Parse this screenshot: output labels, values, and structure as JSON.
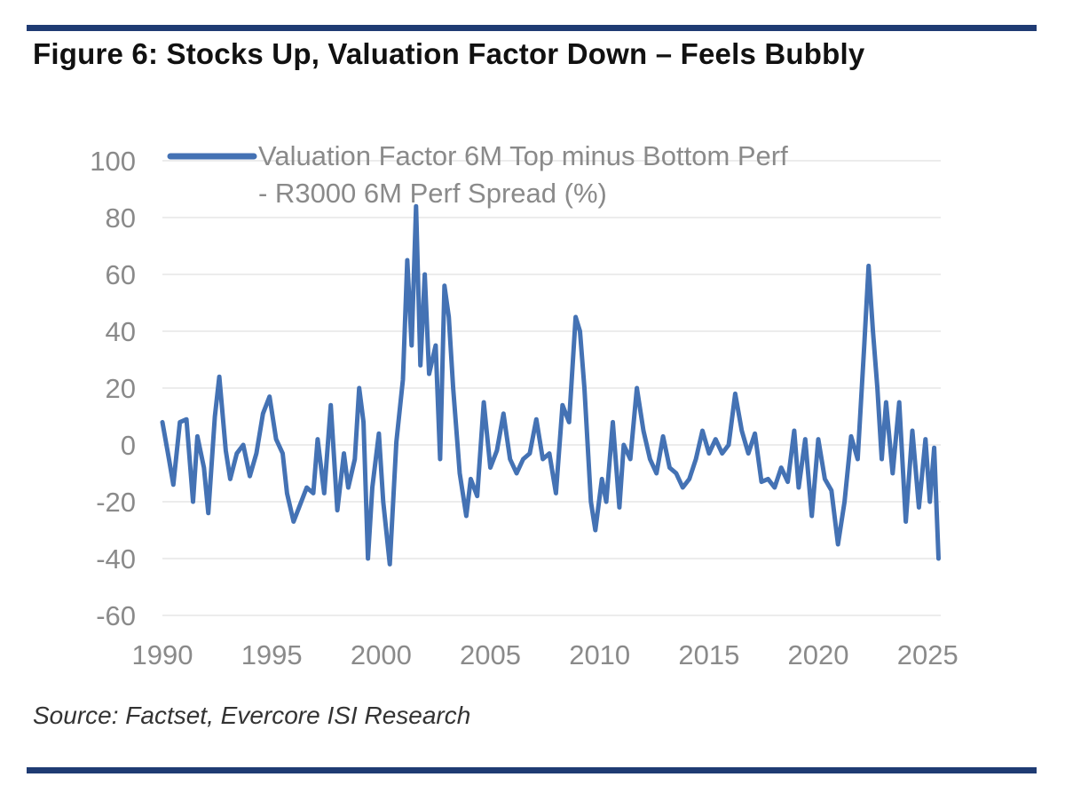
{
  "title": "Figure 6: Stocks Up, Valuation Factor Down – Feels Bubbly",
  "source": "Source: Factset, Evercore ISI Research",
  "colors": {
    "line": "#4472b4",
    "rule": "#1f3b73",
    "grid": "#e6e6e6",
    "tick": "#8a8a8a"
  },
  "chart_data": {
    "type": "line",
    "title": "Figure 6: Stocks Up, Valuation Factor Down – Feels Bubbly",
    "xlabel": "",
    "ylabel": "",
    "xlim": [
      1990,
      2025.6
    ],
    "ylim": [
      -60,
      100
    ],
    "x_ticks": [
      "1990",
      "1995",
      "2000",
      "2005",
      "2010",
      "2015",
      "2020",
      "2025"
    ],
    "y_ticks": [
      "100",
      "80",
      "60",
      "40",
      "20",
      "0",
      "-20",
      "-40",
      "-60"
    ],
    "grid": true,
    "legend_position": "top",
    "series": [
      {
        "name": "Valuation Factor 6M Top minus Bottom Perf - R3000 6M Perf Spread (%)",
        "legend_lines": [
          "Valuation Factor 6M Top minus Bottom Perf",
          "- R3000 6M Perf Spread (%)"
        ],
        "points": [
          [
            1990.0,
            8
          ],
          [
            1990.3,
            -5
          ],
          [
            1990.5,
            -14
          ],
          [
            1990.8,
            8
          ],
          [
            1991.1,
            9
          ],
          [
            1991.4,
            -20
          ],
          [
            1991.6,
            3
          ],
          [
            1991.9,
            -8
          ],
          [
            1992.1,
            -24
          ],
          [
            1992.4,
            10
          ],
          [
            1992.6,
            24
          ],
          [
            1992.9,
            -2
          ],
          [
            1993.1,
            -12
          ],
          [
            1993.4,
            -3
          ],
          [
            1993.7,
            0
          ],
          [
            1994.0,
            -11
          ],
          [
            1994.3,
            -3
          ],
          [
            1994.6,
            11
          ],
          [
            1994.9,
            17
          ],
          [
            1995.2,
            2
          ],
          [
            1995.5,
            -3
          ],
          [
            1995.7,
            -17
          ],
          [
            1996.0,
            -27
          ],
          [
            1996.3,
            -21
          ],
          [
            1996.6,
            -15
          ],
          [
            1996.9,
            -17
          ],
          [
            1997.1,
            2
          ],
          [
            1997.4,
            -17
          ],
          [
            1997.7,
            14
          ],
          [
            1998.0,
            -23
          ],
          [
            1998.3,
            -3
          ],
          [
            1998.5,
            -15
          ],
          [
            1998.8,
            -5
          ],
          [
            1999.0,
            20
          ],
          [
            1999.2,
            8
          ],
          [
            1999.4,
            -40
          ],
          [
            1999.6,
            -15
          ],
          [
            1999.9,
            4
          ],
          [
            2000.1,
            -20
          ],
          [
            2000.4,
            -42
          ],
          [
            2000.7,
            1
          ],
          [
            2001.0,
            23
          ],
          [
            2001.2,
            65
          ],
          [
            2001.4,
            35
          ],
          [
            2001.6,
            84
          ],
          [
            2001.8,
            28
          ],
          [
            2002.0,
            60
          ],
          [
            2002.2,
            25
          ],
          [
            2002.5,
            35
          ],
          [
            2002.7,
            -5
          ],
          [
            2002.9,
            56
          ],
          [
            2003.1,
            45
          ],
          [
            2003.3,
            20
          ],
          [
            2003.6,
            -10
          ],
          [
            2003.9,
            -25
          ],
          [
            2004.1,
            -12
          ],
          [
            2004.4,
            -18
          ],
          [
            2004.7,
            15
          ],
          [
            2005.0,
            -8
          ],
          [
            2005.3,
            -2
          ],
          [
            2005.6,
            11
          ],
          [
            2005.9,
            -5
          ],
          [
            2006.2,
            -10
          ],
          [
            2006.5,
            -5
          ],
          [
            2006.8,
            -3
          ],
          [
            2007.1,
            9
          ],
          [
            2007.4,
            -5
          ],
          [
            2007.7,
            -3
          ],
          [
            2008.0,
            -17
          ],
          [
            2008.3,
            14
          ],
          [
            2008.6,
            8
          ],
          [
            2008.9,
            45
          ],
          [
            2009.1,
            40
          ],
          [
            2009.3,
            20
          ],
          [
            2009.6,
            -20
          ],
          [
            2009.8,
            -30
          ],
          [
            2010.1,
            -12
          ],
          [
            2010.3,
            -20
          ],
          [
            2010.6,
            8
          ],
          [
            2010.9,
            -22
          ],
          [
            2011.1,
            0
          ],
          [
            2011.4,
            -5
          ],
          [
            2011.7,
            20
          ],
          [
            2012.0,
            5
          ],
          [
            2012.3,
            -5
          ],
          [
            2012.6,
            -10
          ],
          [
            2012.9,
            3
          ],
          [
            2013.2,
            -8
          ],
          [
            2013.5,
            -10
          ],
          [
            2013.8,
            -15
          ],
          [
            2014.1,
            -12
          ],
          [
            2014.4,
            -5
          ],
          [
            2014.7,
            5
          ],
          [
            2015.0,
            -3
          ],
          [
            2015.3,
            2
          ],
          [
            2015.6,
            -3
          ],
          [
            2015.9,
            0
          ],
          [
            2016.2,
            18
          ],
          [
            2016.5,
            5
          ],
          [
            2016.8,
            -3
          ],
          [
            2017.1,
            4
          ],
          [
            2017.4,
            -13
          ],
          [
            2017.7,
            -12
          ],
          [
            2018.0,
            -15
          ],
          [
            2018.3,
            -8
          ],
          [
            2018.6,
            -13
          ],
          [
            2018.9,
            5
          ],
          [
            2019.1,
            -15
          ],
          [
            2019.4,
            2
          ],
          [
            2019.7,
            -25
          ],
          [
            2020.0,
            2
          ],
          [
            2020.3,
            -12
          ],
          [
            2020.6,
            -16
          ],
          [
            2020.9,
            -35
          ],
          [
            2021.2,
            -20
          ],
          [
            2021.5,
            3
          ],
          [
            2021.8,
            -5
          ],
          [
            2022.1,
            35
          ],
          [
            2022.3,
            63
          ],
          [
            2022.5,
            40
          ],
          [
            2022.7,
            20
          ],
          [
            2022.9,
            -5
          ],
          [
            2023.1,
            15
          ],
          [
            2023.4,
            -10
          ],
          [
            2023.7,
            15
          ],
          [
            2024.0,
            -27
          ],
          [
            2024.3,
            5
          ],
          [
            2024.6,
            -22
          ],
          [
            2024.9,
            2
          ],
          [
            2025.1,
            -20
          ],
          [
            2025.3,
            -1
          ],
          [
            2025.5,
            -40
          ]
        ]
      }
    ]
  }
}
